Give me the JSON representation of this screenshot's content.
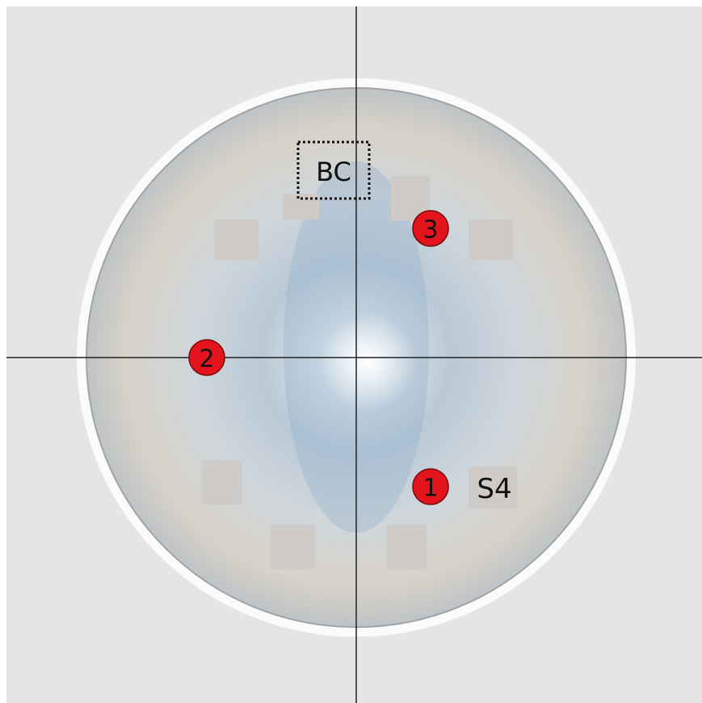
{
  "annotations": {
    "box_label": "BC",
    "markers": [
      "1",
      "2",
      "3"
    ],
    "sensor_label": "S4"
  }
}
